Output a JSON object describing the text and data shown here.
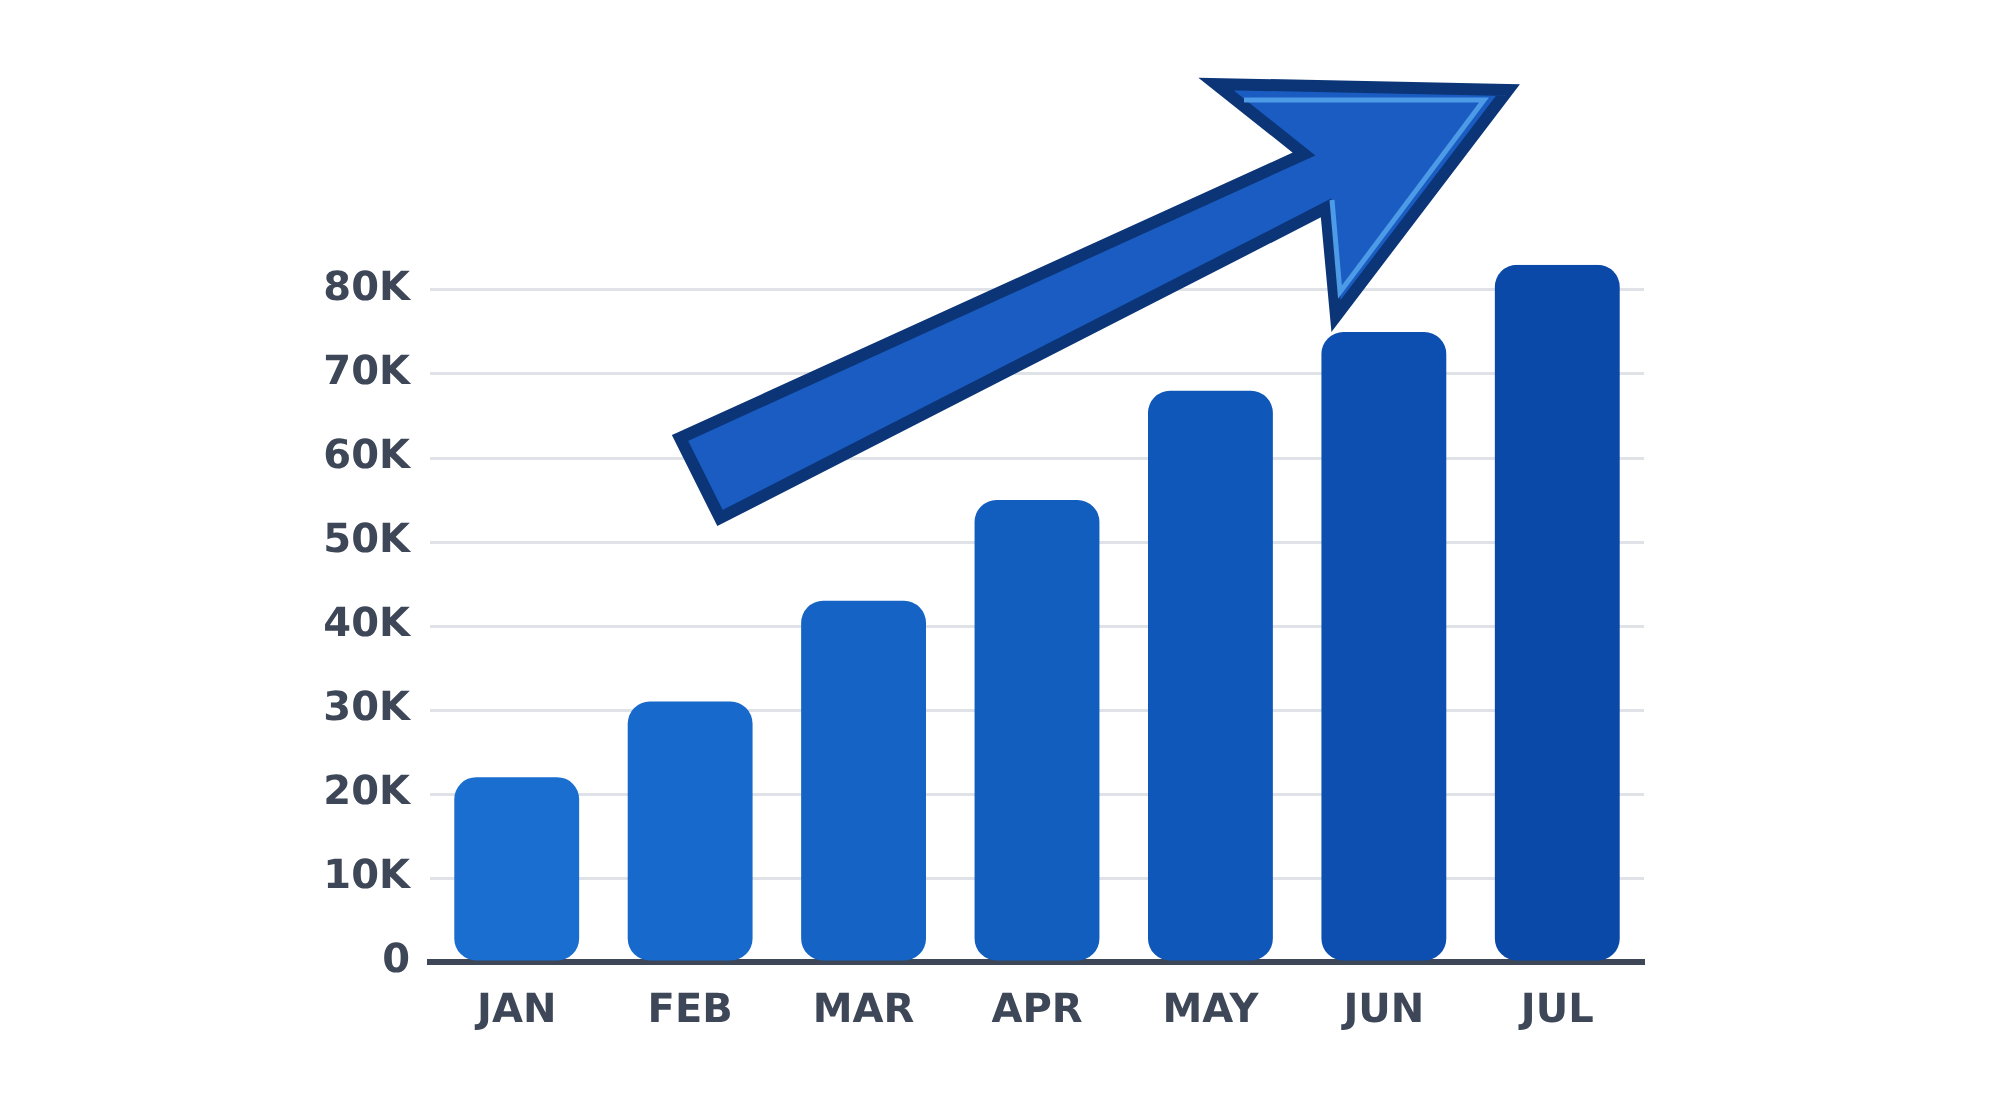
{
  "chart_data": {
    "type": "bar",
    "categories": [
      "JAN",
      "FEB",
      "MAR",
      "APR",
      "MAY",
      "JUN",
      "JUL"
    ],
    "values": [
      22000,
      31000,
      43000,
      55000,
      68000,
      75000,
      83000
    ],
    "colors": [
      "#1a6ed0",
      "#1769cb",
      "#1564c5",
      "#125ebf",
      "#0f57b8",
      "#0c4fb0",
      "#0a49a8"
    ],
    "ylim": [
      0,
      83000
    ],
    "yticks": [
      0,
      {
        "value": 10000,
        "label": "10K"
      },
      {
        "value": 20000,
        "label": "20K"
      },
      {
        "value": 30000,
        "label": "30K"
      },
      {
        "value": 40000,
        "label": "40K"
      },
      {
        "value": 50000,
        "label": "50K"
      },
      {
        "value": 60000,
        "label": "60K"
      },
      {
        "value": 70000,
        "label": "70K"
      },
      {
        "value": 80000,
        "label": "80K"
      }
    ],
    "grid": "y"
  }
}
